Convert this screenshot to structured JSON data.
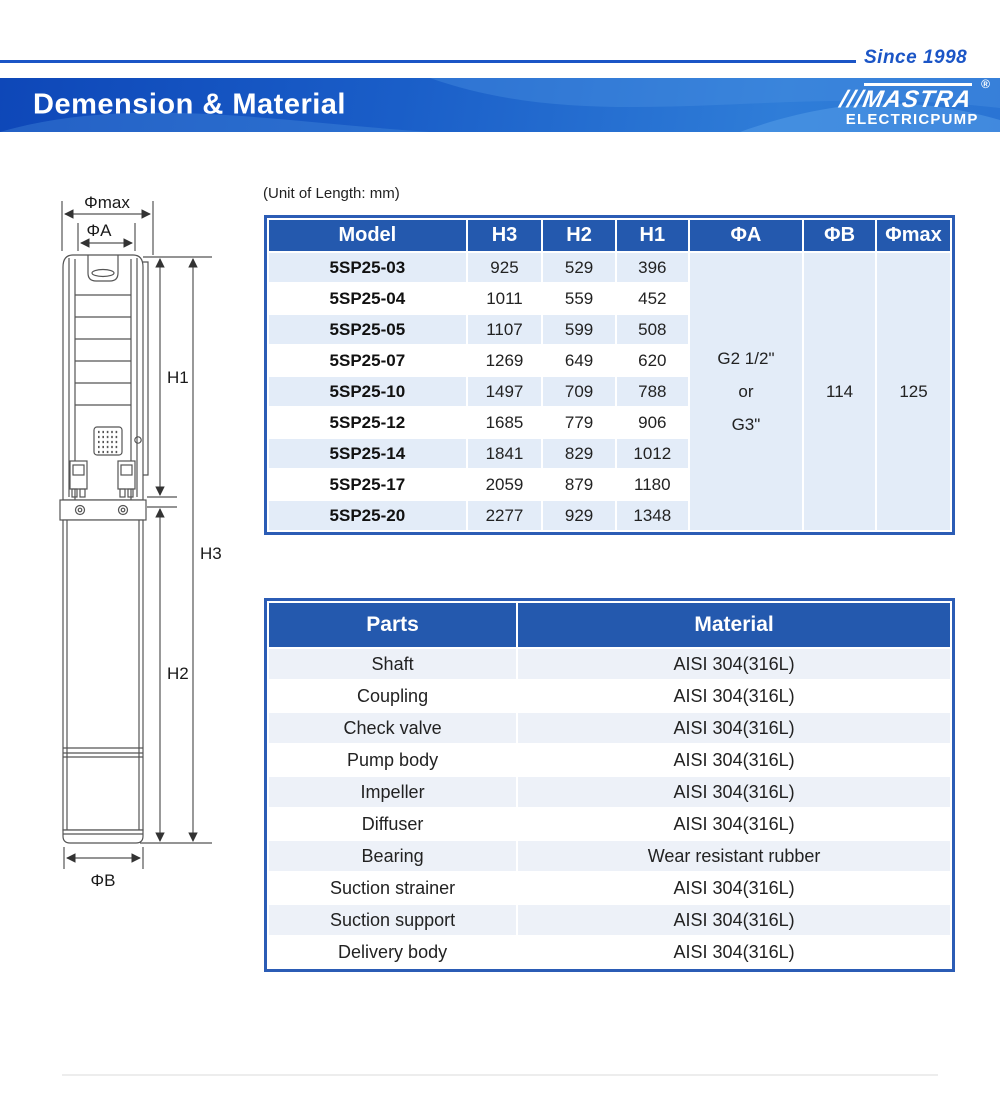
{
  "header": {
    "since": "Since 1998",
    "title": "Demension & Material",
    "logo": {
      "slashes": "///",
      "brand": "MASTRA",
      "reg": "®",
      "sub": "ELECTRICPUMP"
    }
  },
  "unit_note": "(Unit of Length: mm)",
  "drawing": {
    "labels": {
      "phimax": "Φmax",
      "phia": "ΦA",
      "h1": "H1",
      "h3": "H3",
      "h2": "H2",
      "phib": "ΦB"
    }
  },
  "dimension_table": {
    "headers": [
      "Model",
      "H3",
      "H2",
      "H1",
      "ΦA",
      "ΦB",
      "Φmax"
    ],
    "rows": [
      [
        "5SP25-03",
        "925",
        "529",
        "396"
      ],
      [
        "5SP25-04",
        "1011",
        "559",
        "452"
      ],
      [
        "5SP25-05",
        "1107",
        "599",
        "508"
      ],
      [
        "5SP25-07",
        "1269",
        "649",
        "620"
      ],
      [
        "5SP25-10",
        "1497",
        "709",
        "788"
      ],
      [
        "5SP25-12",
        "1685",
        "779",
        "906"
      ],
      [
        "5SP25-14",
        "1841",
        "829",
        "1012"
      ],
      [
        "5SP25-17",
        "2059",
        "879",
        "1180"
      ],
      [
        "5SP25-20",
        "2277",
        "929",
        "1348"
      ]
    ],
    "merged": {
      "phiA_lines": [
        "G2 1/2\"",
        "or",
        "G3\""
      ],
      "phiB": "114",
      "phiMax": "125"
    }
  },
  "parts_table": {
    "headers": [
      "Parts",
      "Material"
    ],
    "rows": [
      [
        "Shaft",
        "AISI 304(316L)"
      ],
      [
        "Coupling",
        "AISI 304(316L)"
      ],
      [
        "Check valve",
        "AISI 304(316L)"
      ],
      [
        "Pump body",
        "AISI 304(316L)"
      ],
      [
        "Impeller",
        "AISI 304(316L)"
      ],
      [
        "Diffuser",
        "AISI 304(316L)"
      ],
      [
        "Bearing",
        "Wear resistant rubber"
      ],
      [
        "Suction strainer",
        "AISI 304(316L)"
      ],
      [
        "Suction support",
        "AISI 304(316L)"
      ],
      [
        "Delivery body",
        "AISI 304(316L)"
      ]
    ]
  },
  "colors": {
    "accent_blue": "#1b55c6",
    "banner_blue_dark": "#0e47b8",
    "banner_blue_light": "#2f7dd8",
    "table_header_bg": "#2459ae",
    "table_border": "#2b5cb5",
    "dim_row_tint": "#e3ecf8",
    "parts_row_tint": "#edf1f8"
  }
}
